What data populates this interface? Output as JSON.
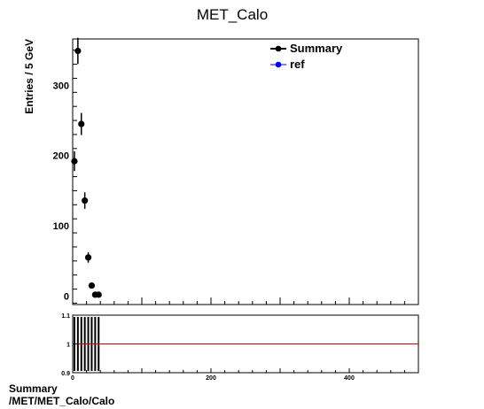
{
  "chart_data": [
    {
      "type": "scatter",
      "title": "MET_Calo",
      "xlabel": "",
      "ylabel": "Entries / 5 GeV",
      "xlim": [
        0,
        500
      ],
      "ylim": [
        -12,
        366
      ],
      "yticks": [
        0,
        100,
        200,
        300
      ],
      "legend": {
        "placement": "top-right",
        "entries": [
          {
            "name": "Summary",
            "color": "#000000"
          },
          {
            "name": "ref",
            "color": "#0000ff"
          }
        ]
      },
      "series": [
        {
          "name": "Summary",
          "color": "#000000",
          "points": [
            {
              "x": 2.5,
              "y": 192,
              "err": 14
            },
            {
              "x": 7.5,
              "y": 349,
              "err": 18.7
            },
            {
              "x": 12.5,
              "y": 245,
              "err": 15.7
            },
            {
              "x": 17.5,
              "y": 136,
              "err": 11.7
            },
            {
              "x": 22.5,
              "y": 55,
              "err": 7.4
            },
            {
              "x": 27.5,
              "y": 15,
              "err": 3.9
            },
            {
              "x": 32.5,
              "y": 2,
              "err": 1.4
            },
            {
              "x": 37.5,
              "y": 2,
              "err": 1.4
            }
          ]
        }
      ]
    },
    {
      "type": "line",
      "xlim": [
        0,
        500
      ],
      "ylim": [
        0.9,
        1.1
      ],
      "xticks": [
        0,
        200,
        400
      ],
      "yticks": [
        0.9,
        1,
        1.1
      ],
      "ytick_labels": [
        "0.9",
        "1",
        "1.1"
      ],
      "reference_line": {
        "y": 1,
        "color": "#cc0000"
      },
      "ratio_x": [
        2.5,
        7.5,
        12.5,
        17.5,
        22.5,
        27.5,
        32.5,
        37.5
      ]
    }
  ],
  "footer": {
    "line1": "Summary",
    "line2": "/MET/MET_Calo/Calo"
  }
}
